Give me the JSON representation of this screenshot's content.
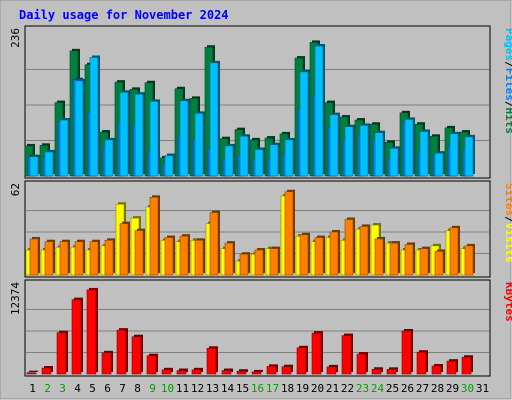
{
  "colors": {
    "background": "#c0c0c0",
    "frame": "#a0a0a0",
    "title": "#0000ff",
    "hits": "#008040",
    "files": "#0080ff",
    "pages": "#00c0ff",
    "visits": "#ffff00",
    "sites": "#ff8000",
    "kbytes": "#ff0000",
    "weekend": "#00a000",
    "weekday": "#000000"
  },
  "chart_data": {
    "type": "bar",
    "title": "Daily usage for November 2024",
    "categories": [
      "1",
      "2",
      "3",
      "4",
      "5",
      "6",
      "7",
      "8",
      "9",
      "10",
      "11",
      "12",
      "13",
      "14",
      "15",
      "16",
      "17",
      "18",
      "19",
      "20",
      "21",
      "22",
      "23",
      "24",
      "25",
      "26",
      "27",
      "28",
      "29",
      "30",
      "31"
    ],
    "weekend_days": [
      "2",
      "3",
      "9",
      "10",
      "16",
      "17",
      "23",
      "24",
      "30"
    ],
    "panels": [
      {
        "label_parts": [
          "Hits",
          "Files",
          "Pages"
        ],
        "label_colors": [
          "hits",
          "files",
          "pages"
        ],
        "ymax_label": "236",
        "ylim": [
          0,
          236
        ],
        "series": [
          {
            "name": "Hits",
            "color": "hits",
            "values": [
              50,
              51,
              122,
              208,
              185,
              73,
              156,
              144,
              155,
              30,
              145,
              129,
              214,
              62,
              77,
              60,
              63,
              70,
              196,
              222,
              122,
              98,
              93,
              86,
              56,
              105,
              86,
              66,
              80,
              73,
              0
            ]
          },
          {
            "name": "Files",
            "color": "files",
            "values": [
              32,
              32,
              90,
              160,
              106,
              50,
              90,
              86,
              40,
              20,
              66,
              60,
              45,
              28,
              36,
              28,
              30,
              38,
              112,
              135,
              80,
              60,
              70,
              60,
              30,
              90,
              40,
              35,
              50,
              45,
              0
            ]
          },
          {
            "name": "Pages",
            "color": "pages",
            "values": [
              32,
              40,
              93,
              158,
              197,
              60,
              139,
              136,
              124,
              34,
              125,
              104,
              188,
              50,
              66,
              44,
              52,
              60,
              173,
              216,
              102,
              82,
              84,
              72,
              46,
              94,
              74,
              38,
              70,
              65,
              0
            ]
          }
        ]
      },
      {
        "label_parts": [
          "Visits",
          "Sites"
        ],
        "label_colors": [
          "visits",
          "sites"
        ],
        "ymax_label": "62",
        "ylim": [
          0,
          62
        ],
        "series": [
          {
            "name": "Visits",
            "color": "visits",
            "values": [
              18,
              18,
              20,
              20,
              18,
              21,
              51,
              41,
              49,
              25,
              24,
              25,
              37,
              19,
              10,
              15,
              19,
              57,
              28,
              24,
              27,
              25,
              33,
              36,
              23,
              18,
              18,
              21,
              32,
              19,
              0
            ]
          },
          {
            "name": "Sites",
            "color": "sites",
            "values": [
              26,
              24,
              24,
              24,
              24,
              25,
              37,
              32,
              56,
              27,
              28,
              25,
              45,
              23,
              15,
              18,
              19,
              60,
              29,
              27,
              31,
              40,
              35,
              26,
              23,
              22,
              19,
              17,
              34,
              21,
              0
            ]
          }
        ]
      },
      {
        "label_parts": [
          "KBytes"
        ],
        "label_colors": [
          "kbytes"
        ],
        "ymax_label": "12374",
        "ylim": [
          0,
          12374
        ],
        "series": [
          {
            "name": "KBytes",
            "color": "kbytes",
            "values": [
              190,
              860,
              5950,
              10700,
              12100,
              3050,
              6310,
              5370,
              2630,
              600,
              500,
              600,
              3700,
              500,
              400,
              300,
              1100,
              1050,
              3770,
              5880,
              1030,
              5530,
              2870,
              680,
              670,
              6190,
              3140,
              1150,
              1850,
              2410,
              0
            ]
          }
        ]
      }
    ]
  }
}
